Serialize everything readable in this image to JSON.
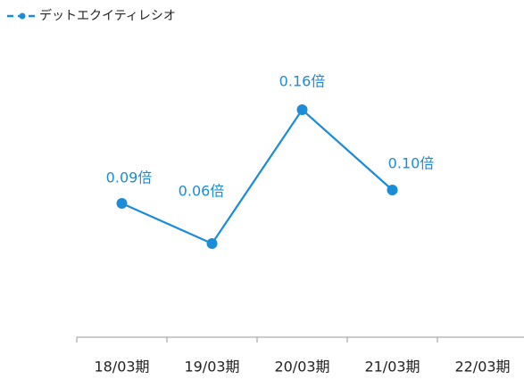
{
  "chart_data": {
    "type": "line",
    "categories": [
      "18/03期",
      "19/03期",
      "20/03期",
      "21/03期",
      "22/03期"
    ],
    "series": [
      {
        "name": "デットエクイティレシオ",
        "color": "#1a8cd8",
        "values": [
          0.09,
          0.06,
          0.16,
          0.1,
          null
        ],
        "value_labels": [
          "0.09倍",
          "0.06倍",
          "0.16倍",
          "0.10倍",
          null
        ]
      }
    ],
    "ylim": [
      0,
      0.2
    ],
    "legend": "top-left"
  }
}
